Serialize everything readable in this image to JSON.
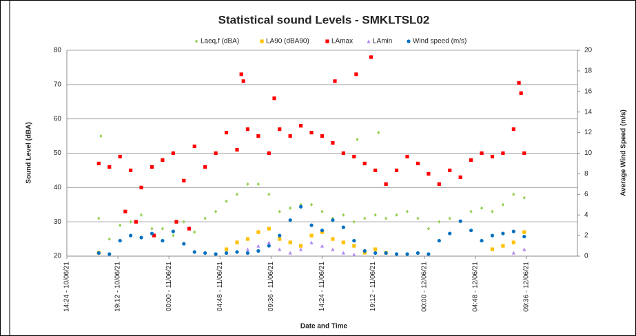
{
  "chart_data": {
    "type": "scatter",
    "title": "Statistical sound Levels - SMKLTSL02",
    "xlabel": "Date and Time",
    "ylabel": "Sound Level (dBA)",
    "y2label": "Average Wind Speed (m/s)",
    "xlim": [
      0,
      48
    ],
    "xticks": [
      {
        "value": 0,
        "label": "14:24 - 10/06/21"
      },
      {
        "value": 4.8,
        "label": "19:12 - 10/06/21"
      },
      {
        "value": 9.6,
        "label": "00:00 - 11/06/21"
      },
      {
        "value": 14.4,
        "label": "04:48 - 11/06/21"
      },
      {
        "value": 19.2,
        "label": "09:36 - 11/06/21"
      },
      {
        "value": 24,
        "label": "14:24 - 11/06/21"
      },
      {
        "value": 28.8,
        "label": "19:12 - 11/06/21"
      },
      {
        "value": 33.6,
        "label": "00:00 - 12/06/21"
      },
      {
        "value": 38.4,
        "label": "04:48 - 12/06/21"
      },
      {
        "value": 43.2,
        "label": "09:36 - 12/06/21"
      }
    ],
    "ylim": [
      20,
      80
    ],
    "yticks": [
      20,
      30,
      40,
      50,
      60,
      70,
      80
    ],
    "y2lim": [
      0,
      20
    ],
    "y2ticks": [
      0,
      2,
      4,
      6,
      8,
      10,
      12,
      14,
      16,
      18,
      20
    ],
    "grid": true,
    "legend": "top",
    "series": [
      {
        "name": "Laeq,f (dBA)",
        "color": "#92d050",
        "marker": "diamond",
        "x": [
          3,
          3.2,
          4,
          5,
          6,
          7,
          8,
          9,
          10,
          11,
          12,
          13,
          14,
          15,
          16,
          17,
          18,
          19,
          20,
          21,
          22,
          23,
          24,
          25,
          26,
          27,
          27.3,
          28,
          29,
          29.3,
          30,
          31,
          32,
          33,
          34,
          35,
          36,
          37,
          38,
          39,
          40,
          41,
          42,
          43
        ],
        "values": [
          31,
          55,
          25,
          29,
          30,
          32,
          28,
          28,
          26,
          30,
          27,
          31,
          33,
          36,
          38,
          41,
          41,
          38,
          33,
          34,
          35,
          35,
          33,
          31,
          32,
          30,
          54,
          31,
          32,
          56,
          31,
          32,
          33,
          31,
          28,
          30,
          31,
          30,
          33,
          34,
          33,
          35,
          38,
          37
        ]
      },
      {
        "name": "LA90  (dBA90)",
        "color": "#ffc000",
        "marker": "square",
        "x": [
          3,
          15,
          16,
          17,
          18,
          19,
          20,
          21,
          22,
          23,
          24,
          25,
          26,
          27,
          28,
          29,
          30,
          40,
          41,
          42,
          43
        ],
        "values": [
          21,
          22,
          24,
          25,
          27,
          28,
          25,
          24,
          23,
          26,
          27,
          25,
          24,
          23,
          21,
          22,
          21,
          22,
          23,
          24,
          27
        ]
      },
      {
        "name": "LAmax",
        "color": "#ff0000",
        "marker": "square",
        "x": [
          3,
          4,
          5,
          5.5,
          6,
          6.5,
          7,
          8,
          8.2,
          9,
          10,
          10.3,
          11,
          11.5,
          12,
          13,
          14,
          15,
          16,
          16.4,
          16.6,
          17,
          18,
          19,
          19.5,
          20,
          21,
          22,
          23,
          24,
          25,
          25.2,
          26,
          27,
          27.2,
          28,
          28.6,
          29,
          30,
          31,
          32,
          33,
          34,
          35,
          36,
          37,
          38,
          39,
          40,
          41,
          42,
          42.5,
          42.7,
          43
        ],
        "values": [
          47,
          46,
          49,
          33,
          45,
          30,
          40,
          46,
          26,
          48,
          50,
          30,
          42,
          28,
          52,
          46,
          50,
          56,
          51,
          73,
          71,
          57,
          55,
          50,
          66,
          57,
          55,
          58,
          56,
          55,
          53,
          71,
          50,
          49,
          73,
          47,
          78,
          45,
          41,
          45,
          49,
          47,
          44,
          41,
          45,
          43,
          48,
          50,
          49,
          50,
          57,
          70.5,
          67.5,
          50
        ]
      },
      {
        "name": "LAmin",
        "color": "#b18bf0",
        "marker": "triangle",
        "x": [
          17,
          18,
          19,
          20,
          21,
          22,
          23,
          24,
          25,
          26,
          27,
          42,
          43
        ],
        "values": [
          22,
          23,
          24,
          22,
          21,
          22,
          24,
          23,
          22,
          21,
          20.5,
          21,
          22
        ]
      },
      {
        "name": "Wind speed (m/s)",
        "color": "#0070c0",
        "marker": "circle",
        "axis": "y2",
        "x": [
          3,
          4,
          5,
          6,
          7,
          8,
          9,
          10,
          11,
          12,
          13,
          14,
          15,
          16,
          17,
          18,
          19,
          20,
          21,
          22,
          23,
          24,
          25,
          26,
          27,
          28,
          29,
          30,
          31,
          32,
          33,
          34,
          35,
          36,
          37,
          38,
          39,
          40,
          41,
          42,
          43
        ],
        "values": [
          0.3,
          0.2,
          1.5,
          2,
          1.8,
          2.2,
          1.5,
          2.4,
          1.2,
          0.4,
          0.3,
          0.2,
          0.3,
          0.4,
          0.3,
          0.5,
          1,
          2,
          3.5,
          4.8,
          3,
          2.5,
          3.5,
          2.8,
          1.5,
          0.5,
          0.3,
          0.3,
          0.2,
          0.2,
          0.3,
          0.2,
          1.5,
          2.2,
          3.4,
          2.5,
          1.5,
          2,
          2.2,
          2.4,
          1.9
        ]
      }
    ]
  }
}
